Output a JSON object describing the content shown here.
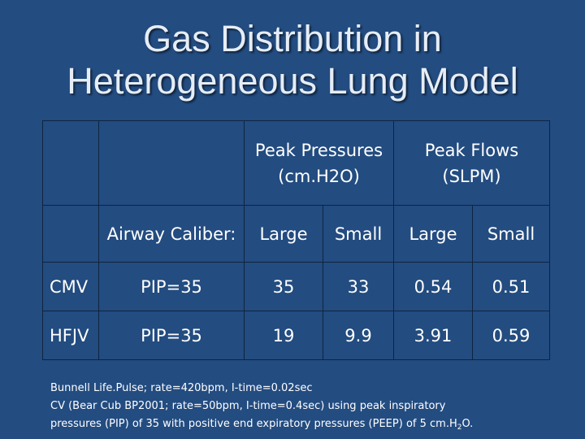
{
  "slide": {
    "title_line1": "Gas Distribution in",
    "title_line2": "Heterogeneous Lung Model"
  },
  "table": {
    "group_headers": {
      "pressures_line1": "Peak Pressures",
      "pressures_line2": "(cm.H2O)",
      "flows_line1": "Peak Flows",
      "flows_line2": "(SLPM)"
    },
    "caliber_label": "Airway Caliber:",
    "sub_headers": [
      "Large",
      "Small",
      "Large",
      "Small"
    ],
    "rows": [
      {
        "mode": "CMV",
        "pip": "PIP=35",
        "values": [
          "35",
          "33",
          "0.54",
          "0.51"
        ]
      },
      {
        "mode": "HFJV",
        "pip": "PIP=35",
        "values": [
          "19",
          "9.9",
          "3.91",
          "0.59"
        ]
      }
    ]
  },
  "notes": {
    "line1": "Bunnell Life.Pulse; rate=420bpm, I-time=0.02sec",
    "line2": "CV (Bear Cub BP2001; rate=50bpm, I-time=0.4sec) using peak inspiratory",
    "line3_main": "pressures (PIP) of 35 with positive end expiratory pressures (PEEP) of 5 cm.H",
    "line3_sub": "2",
    "line3_end": "O."
  }
}
